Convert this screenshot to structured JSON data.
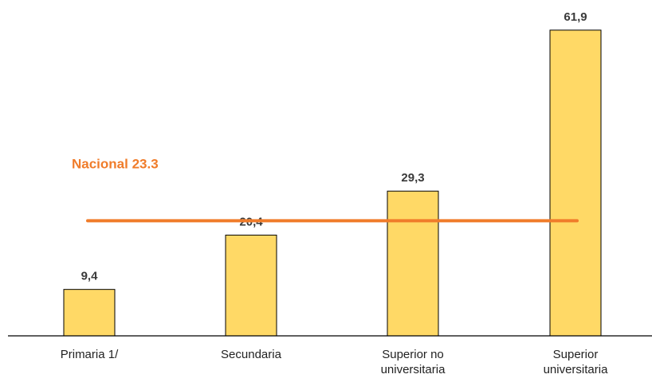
{
  "chart_data": {
    "type": "bar",
    "categories": [
      "Primaria 1/",
      "Secundaria",
      "Superior no universitaria",
      "Superior universitaria"
    ],
    "category_lines": [
      [
        "Primaria 1/"
      ],
      [
        "Secundaria"
      ],
      [
        "Superior no",
        "universitaria"
      ],
      [
        "Superior",
        "universitaria"
      ]
    ],
    "values": [
      9.4,
      20.4,
      29.3,
      61.9
    ],
    "value_labels": [
      "9,4",
      "20,4",
      "29,3",
      "61,9"
    ],
    "ylim": [
      0,
      68
    ],
    "grid": false,
    "reference_line": {
      "label": "Nacional 23.3",
      "value": 23.3
    },
    "colors": {
      "bar": "#FFD966",
      "bar_stroke": "#000000",
      "reference": "#F07C2A",
      "axis": "#000000"
    }
  }
}
